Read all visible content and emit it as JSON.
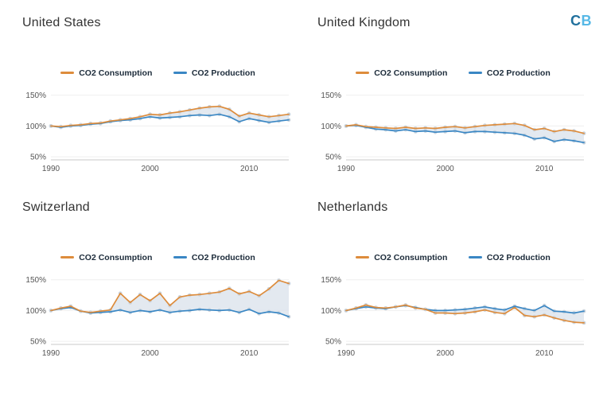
{
  "logo": {
    "c": "C",
    "b": "B"
  },
  "axis": {
    "y_tick_labels": [
      "50%",
      "100%",
      "150%"
    ],
    "x_tick_labels": [
      "1990",
      "2000",
      "2010"
    ]
  },
  "colors": {
    "consumption": "#dd8c3c",
    "production": "#3a87c4",
    "fill_between": "#dce3ec",
    "marker": "#ccd5de",
    "axis_line": "#c8c8c8",
    "grid_line": "#efefef",
    "tick_text": "#555555"
  },
  "chart_data": [
    {
      "type": "line",
      "title": "United States",
      "x_start": 1990,
      "x_ticks": [
        1990,
        2000,
        2010
      ],
      "y_ticks": [
        50,
        100,
        150
      ],
      "y_tick_labels": [
        "50%",
        "100%",
        "150%"
      ],
      "ylim": [
        45,
        160
      ],
      "legend_position": "top",
      "grid": false,
      "series": [
        {
          "name": "CO2 Consumption",
          "color": "#dd8c3c",
          "values": [
            100,
            99,
            101,
            102,
            104,
            105,
            108,
            110,
            112,
            115,
            119,
            118,
            121,
            123,
            126,
            129,
            131,
            132,
            127,
            116,
            121,
            118,
            115,
            117,
            119
          ]
        },
        {
          "name": "CO2 Production",
          "color": "#3a87c4",
          "values": [
            100,
            98,
            100,
            101,
            103,
            104,
            107,
            109,
            110,
            112,
            115,
            113,
            114,
            115,
            117,
            118,
            117,
            119,
            115,
            107,
            112,
            109,
            106,
            108,
            110
          ]
        }
      ]
    },
    {
      "type": "line",
      "title": "United Kingdom",
      "x_start": 1990,
      "x_ticks": [
        1990,
        2000,
        2010
      ],
      "y_ticks": [
        50,
        100,
        150
      ],
      "y_tick_labels": [
        "50%",
        "100%",
        "150%"
      ],
      "ylim": [
        45,
        160
      ],
      "legend_position": "top",
      "grid": false,
      "series": [
        {
          "name": "CO2 Consumption",
          "color": "#dd8c3c",
          "values": [
            100,
            102,
            99,
            98,
            97,
            96,
            98,
            96,
            97,
            96,
            98,
            99,
            97,
            99,
            101,
            102,
            103,
            104,
            101,
            94,
            96,
            91,
            94,
            92,
            88
          ]
        },
        {
          "name": "CO2 Production",
          "color": "#3a87c4",
          "values": [
            100,
            101,
            98,
            95,
            94,
            92,
            94,
            91,
            92,
            90,
            91,
            92,
            89,
            91,
            91,
            90,
            89,
            88,
            85,
            79,
            81,
            75,
            78,
            76,
            73
          ]
        }
      ]
    },
    {
      "type": "line",
      "title": "Switzerland",
      "x_start": 1990,
      "x_ticks": [
        1990,
        2000,
        2010
      ],
      "y_ticks": [
        50,
        100,
        150
      ],
      "y_tick_labels": [
        "50%",
        "100%",
        "150%"
      ],
      "ylim": [
        45,
        160
      ],
      "legend_position": "top",
      "grid": false,
      "series": [
        {
          "name": "CO2 Consumption",
          "color": "#dd8c3c",
          "values": [
            100,
            104,
            107,
            99,
            97,
            99,
            101,
            128,
            113,
            126,
            116,
            128,
            108,
            122,
            125,
            126,
            128,
            130,
            136,
            127,
            131,
            124,
            135,
            149,
            144
          ]
        },
        {
          "name": "CO2 Production",
          "color": "#3a87c4",
          "values": [
            100,
            103,
            105,
            99,
            96,
            97,
            98,
            101,
            97,
            100,
            98,
            101,
            97,
            99,
            100,
            102,
            101,
            100,
            101,
            97,
            102,
            95,
            98,
            96,
            90
          ]
        }
      ]
    },
    {
      "type": "line",
      "title": "Netherlands",
      "x_start": 1990,
      "x_ticks": [
        1990,
        2000,
        2010
      ],
      "y_ticks": [
        50,
        100,
        150
      ],
      "y_tick_labels": [
        "50%",
        "100%",
        "150%"
      ],
      "ylim": [
        45,
        160
      ],
      "legend_position": "top",
      "grid": false,
      "series": [
        {
          "name": "CO2 Consumption",
          "color": "#dd8c3c",
          "values": [
            100,
            104,
            109,
            105,
            104,
            106,
            109,
            104,
            102,
            96,
            96,
            95,
            96,
            98,
            101,
            97,
            95,
            105,
            92,
            90,
            93,
            88,
            84,
            81,
            80
          ]
        },
        {
          "name": "CO2 Production",
          "color": "#3a87c4",
          "values": [
            100,
            103,
            106,
            104,
            103,
            106,
            108,
            105,
            102,
            100,
            100,
            101,
            102,
            104,
            106,
            103,
            101,
            107,
            103,
            100,
            108,
            99,
            98,
            96,
            99
          ]
        }
      ]
    }
  ]
}
